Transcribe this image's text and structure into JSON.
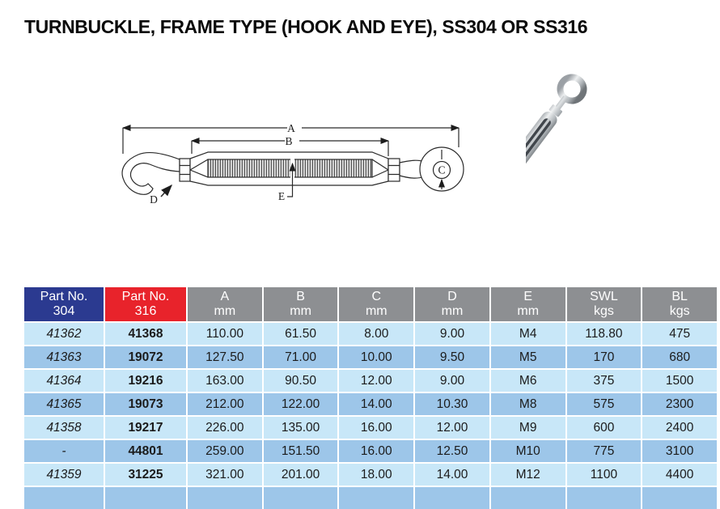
{
  "page": {
    "title": "TURNBUCKLE, FRAME TYPE (HOOK AND EYE), SS304 OR SS316"
  },
  "diagram": {
    "dim_a": "A",
    "dim_b": "B",
    "dim_c": "C",
    "dim_d": "D",
    "dim_e": "E"
  },
  "table": {
    "headers": [
      {
        "line1": "Part No.",
        "line2": "304"
      },
      {
        "line1": "Part No.",
        "line2": "316"
      },
      {
        "line1": "A",
        "line2": "mm"
      },
      {
        "line1": "B",
        "line2": "mm"
      },
      {
        "line1": "C",
        "line2": "mm"
      },
      {
        "line1": "D",
        "line2": "mm"
      },
      {
        "line1": "E",
        "line2": "mm"
      },
      {
        "line1": "SWL",
        "line2": "kgs"
      },
      {
        "line1": "BL",
        "line2": "kgs"
      }
    ],
    "rows": [
      [
        "41362",
        "41368",
        "110.00",
        "61.50",
        "8.00",
        "9.00",
        "M4",
        "118.80",
        "475"
      ],
      [
        "41363",
        "19072",
        "127.50",
        "71.00",
        "10.00",
        "9.50",
        "M5",
        "170",
        "680"
      ],
      [
        "41364",
        "19216",
        "163.00",
        "90.50",
        "12.00",
        "9.00",
        "M6",
        "375",
        "1500"
      ],
      [
        "41365",
        "19073",
        "212.00",
        "122.00",
        "14.00",
        "10.30",
        "M8",
        "575",
        "2300"
      ],
      [
        "41358",
        "19217",
        "226.00",
        "135.00",
        "16.00",
        "12.00",
        "M9",
        "600",
        "2400"
      ],
      [
        "-",
        "44801",
        "259.00",
        "151.50",
        "16.00",
        "12.50",
        "M10",
        "775",
        "3100"
      ],
      [
        "41359",
        "31225",
        "321.00",
        "201.00",
        "18.00",
        "14.00",
        "M12",
        "1100",
        "4400"
      ]
    ],
    "colors": {
      "header_304_bg": "#2b3a90",
      "header_316_bg": "#e8232b",
      "header_gray_bg": "#8d8f92",
      "header_text": "#ffffff",
      "row_light": "#c8e7f8",
      "row_dark": "#9dc6e9",
      "body_text": "#1b1b1b"
    }
  }
}
